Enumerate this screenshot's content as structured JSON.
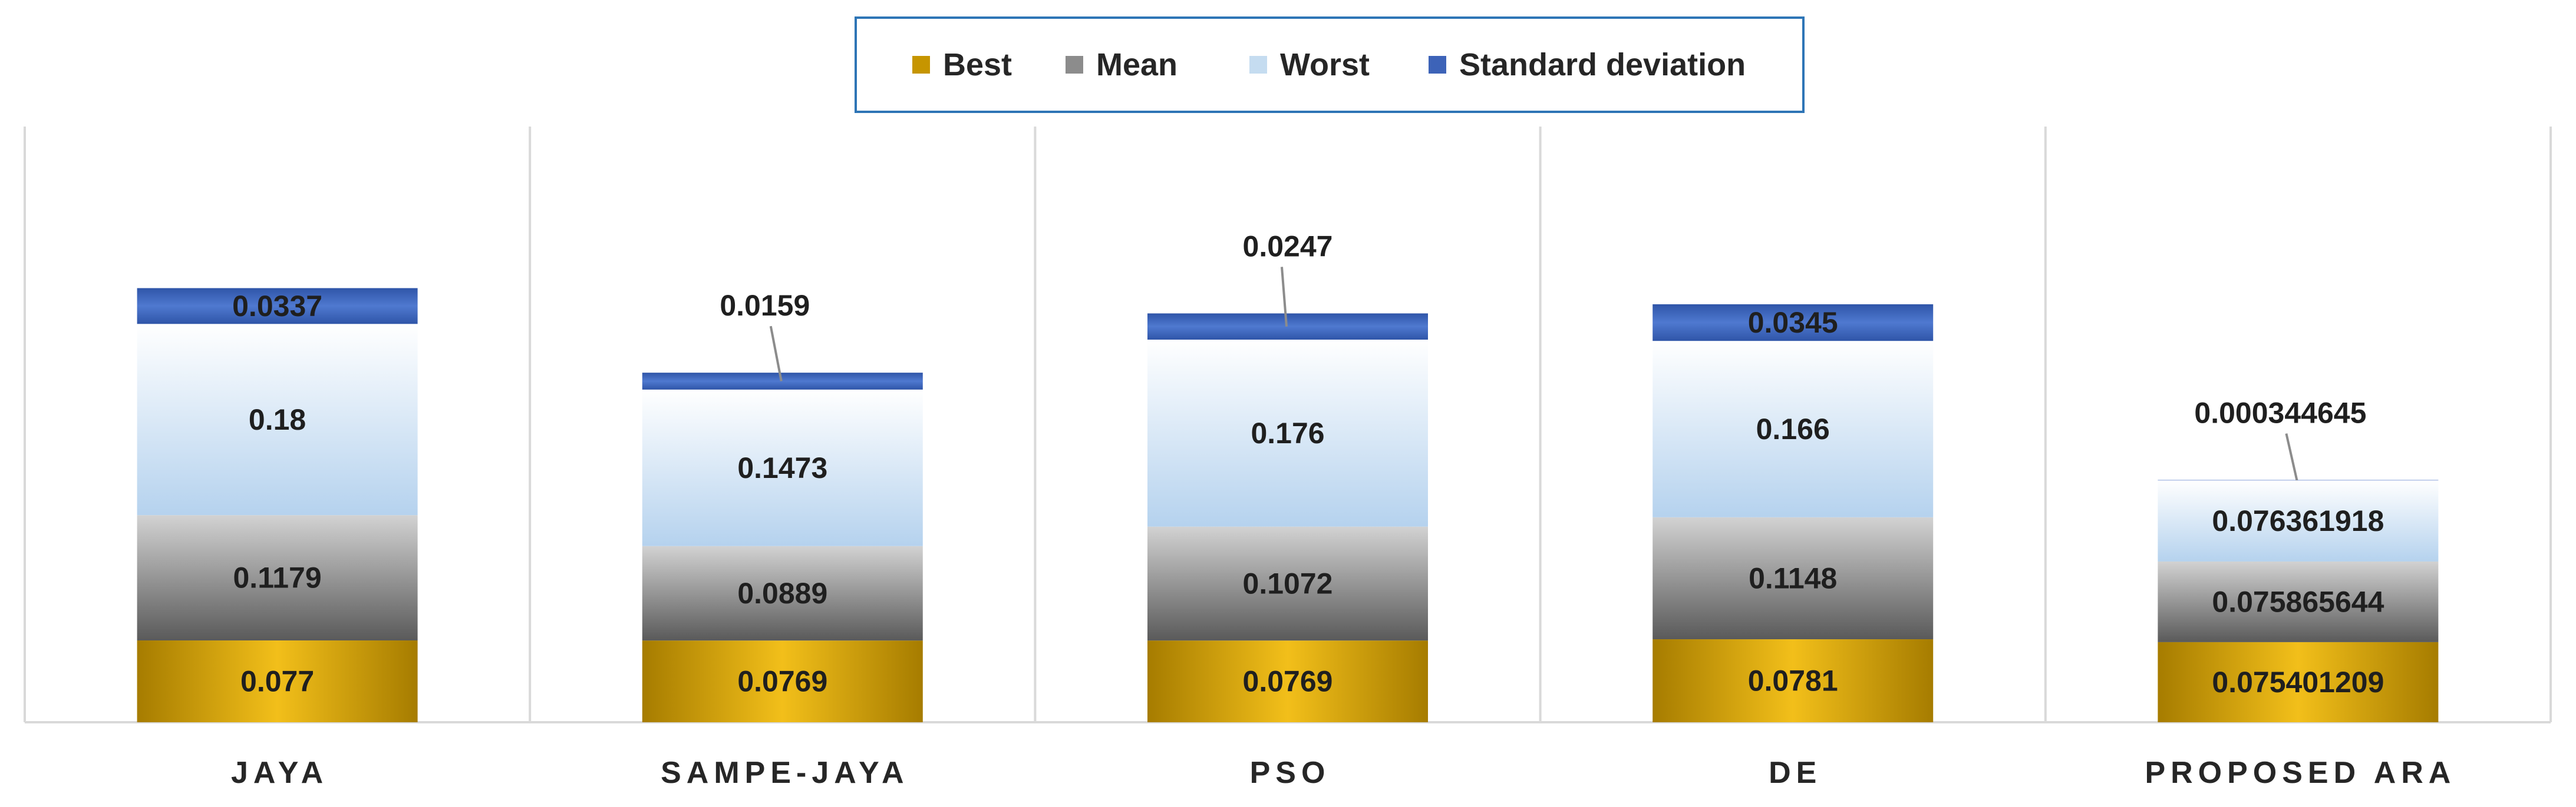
{
  "chart_data": {
    "type": "bar",
    "stacked": true,
    "categories": [
      "JAYA",
      "SAMPE-JAYA",
      "PSO",
      "DE",
      "PROPOSED ARA"
    ],
    "series": [
      {
        "name": "Best",
        "values": [
          0.077,
          0.0769,
          0.0769,
          0.0781,
          0.075401209
        ],
        "labels": [
          "0.077",
          "0.0769",
          "0.0769",
          "0.0781",
          "0.075401209"
        ],
        "color": "#c69500"
      },
      {
        "name": "Mean",
        "values": [
          0.1179,
          0.0889,
          0.1072,
          0.1148,
          0.075865644
        ],
        "labels": [
          "0.1179",
          "0.0889",
          "0.1072",
          "0.1148",
          "0.075865644"
        ],
        "color": "#8c8c8c"
      },
      {
        "name": "Worst",
        "values": [
          0.18,
          0.1473,
          0.176,
          0.166,
          0.076361918
        ],
        "labels": [
          "0.18",
          "0.1473",
          "0.176",
          "0.166",
          "0.076361918"
        ],
        "color": "#c5dcf0"
      },
      {
        "name": "Standard deviation",
        "values": [
          0.0337,
          0.0159,
          0.0247,
          0.0345,
          0.000344645
        ],
        "labels": [
          "0.0337",
          "0.0159",
          "0.0247",
          "0.0345",
          "0.000344645"
        ],
        "color": "#3d63b8"
      }
    ],
    "legend_position": "top-center",
    "grid": false,
    "y_axis_visible": false
  }
}
